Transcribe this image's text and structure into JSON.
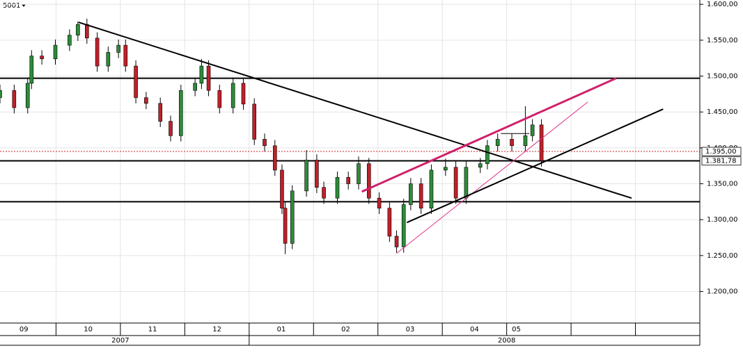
{
  "chart_data": {
    "type": "candlestick",
    "title": "5001",
    "xlim": [
      0.13,
      11.0
    ],
    "ylim": [
      1.156,
      1.606
    ],
    "yticks": [
      {
        "value": 1.2,
        "label": "1.200,00"
      },
      {
        "value": 1.25,
        "label": "1.250,00"
      },
      {
        "value": 1.3,
        "label": "1.300,00"
      },
      {
        "value": 1.35,
        "label": "1.350,00"
      },
      {
        "value": 1.4,
        "label": "1.400,00"
      },
      {
        "value": 1.45,
        "label": "1.450,00"
      },
      {
        "value": 1.5,
        "label": "1.500,00"
      },
      {
        "value": 1.55,
        "label": "1.550,00"
      },
      {
        "value": 1.6,
        "label": "1.600,00"
      }
    ],
    "xgrid": [
      1,
      2,
      3,
      4,
      5,
      6,
      7,
      8,
      9,
      10
    ],
    "xticks": [
      {
        "value": 0.5,
        "label": "09"
      },
      {
        "value": 1.5,
        "label": "10"
      },
      {
        "value": 2.5,
        "label": "11"
      },
      {
        "value": 3.5,
        "label": "12"
      },
      {
        "value": 4.5,
        "label": "01"
      },
      {
        "value": 5.5,
        "label": "02"
      },
      {
        "value": 6.5,
        "label": "03"
      },
      {
        "value": 7.5,
        "label": "04"
      },
      {
        "value": 8.15,
        "label": "05"
      }
    ],
    "years": [
      {
        "value": 2.0,
        "label": "2007"
      },
      {
        "value": 8.0,
        "label": "2008"
      }
    ],
    "year_separator": 4,
    "grid": true,
    "up_color": "#2e8b3a",
    "down_color": "#c0202a",
    "x": [
      0.13,
      0.35,
      0.56,
      0.62,
      0.78,
      0.99,
      1.21,
      1.34,
      1.48,
      1.64,
      1.81,
      1.97,
      2.08,
      2.24,
      2.4,
      2.62,
      2.78,
      2.94,
      3.16,
      3.26,
      3.37,
      3.54,
      3.75,
      3.91,
      4.08,
      4.24,
      4.4,
      4.51,
      4.56,
      4.67,
      4.89,
      5.05,
      5.16,
      5.37,
      5.54,
      5.7,
      5.86,
      6.02,
      6.18,
      6.29,
      6.4,
      6.51,
      6.67,
      6.83,
      7.05,
      7.21,
      7.37,
      7.59,
      7.7,
      7.86,
      8.08,
      8.29,
      8.4,
      8.54
    ],
    "open": [
      1.47,
      1.48,
      1.456,
      1.49,
      1.528,
      1.524,
      1.543,
      1.557,
      1.572,
      1.553,
      1.514,
      1.533,
      1.543,
      1.514,
      1.47,
      1.462,
      1.437,
      1.417,
      1.48,
      1.49,
      1.514,
      1.48,
      1.456,
      1.49,
      1.461,
      1.412,
      1.403,
      1.369,
      1.316,
      1.267,
      1.34,
      1.383,
      1.345,
      1.33,
      1.359,
      1.35,
      1.378,
      1.33,
      1.316,
      1.277,
      1.262,
      1.321,
      1.35,
      1.316,
      1.369,
      1.373,
      1.33,
      1.373,
      1.378,
      1.403,
      1.412,
      1.403,
      1.417,
      1.432
    ],
    "high": [
      1.488,
      1.488,
      1.498,
      1.536,
      1.536,
      1.551,
      1.565,
      1.576,
      1.58,
      1.561,
      1.541,
      1.551,
      1.551,
      1.522,
      1.478,
      1.47,
      1.445,
      1.488,
      1.498,
      1.524,
      1.522,
      1.488,
      1.498,
      1.498,
      1.469,
      1.42,
      1.411,
      1.377,
      1.324,
      1.348,
      1.397,
      1.391,
      1.353,
      1.367,
      1.367,
      1.388,
      1.386,
      1.338,
      1.324,
      1.285,
      1.329,
      1.358,
      1.358,
      1.377,
      1.385,
      1.381,
      1.381,
      1.386,
      1.411,
      1.42,
      1.42,
      1.458,
      1.44,
      1.44
    ],
    "low": [
      1.462,
      1.448,
      1.448,
      1.482,
      1.516,
      1.516,
      1.535,
      1.549,
      1.545,
      1.506,
      1.506,
      1.525,
      1.506,
      1.462,
      1.454,
      1.429,
      1.409,
      1.409,
      1.472,
      1.482,
      1.472,
      1.448,
      1.448,
      1.453,
      1.404,
      1.395,
      1.361,
      1.308,
      1.252,
      1.259,
      1.332,
      1.337,
      1.322,
      1.322,
      1.342,
      1.342,
      1.322,
      1.308,
      1.269,
      1.254,
      1.254,
      1.313,
      1.308,
      1.308,
      1.361,
      1.322,
      1.322,
      1.365,
      1.37,
      1.395,
      1.395,
      1.395,
      1.409,
      1.374
    ],
    "close": [
      1.48,
      1.456,
      1.49,
      1.528,
      1.524,
      1.543,
      1.557,
      1.572,
      1.553,
      1.514,
      1.533,
      1.543,
      1.514,
      1.47,
      1.462,
      1.437,
      1.417,
      1.48,
      1.49,
      1.514,
      1.48,
      1.456,
      1.49,
      1.461,
      1.412,
      1.403,
      1.369,
      1.316,
      1.267,
      1.34,
      1.383,
      1.345,
      1.33,
      1.359,
      1.35,
      1.378,
      1.33,
      1.316,
      1.277,
      1.262,
      1.321,
      1.35,
      1.316,
      1.369,
      1.373,
      1.33,
      1.373,
      1.378,
      1.403,
      1.412,
      1.403,
      1.417,
      1.432,
      1.382
    ],
    "hlines": [
      {
        "value": 1.497,
        "color": "#000000",
        "width": 2
      },
      {
        "value": 1.395,
        "color": "#d02020",
        "width": 1,
        "dashed": true
      },
      {
        "value": 1.382,
        "color": "#000000",
        "width": 2
      },
      {
        "value": 1.325,
        "color": "#000000",
        "width": 2
      }
    ],
    "trendlines": [
      {
        "points": [
          [
            1.35,
            1.575
          ],
          [
            9.94,
            1.33
          ]
        ],
        "color": "#000000",
        "width": 2
      },
      {
        "points": [
          [
            5.75,
            1.339
          ],
          [
            9.7,
            1.497
          ]
        ],
        "color": "#d0206a",
        "width": 3
      },
      {
        "points": [
          [
            6.29,
            1.253
          ],
          [
            9.26,
            1.464
          ]
        ],
        "color": "#e0308a",
        "width": 1
      },
      {
        "points": [
          [
            6.45,
            1.296
          ],
          [
            10.43,
            1.454
          ]
        ],
        "color": "#000000",
        "width": 2
      },
      {
        "points": [
          [
            7.91,
            1.42
          ],
          [
            8.35,
            1.42
          ]
        ],
        "color": "#000000",
        "width": 1
      }
    ],
    "price_labels": [
      {
        "value": 1.395,
        "label": "1.395,00",
        "color": "#000000"
      },
      {
        "value": 1.38178,
        "label": "1.381,78",
        "color": "#d01010"
      }
    ]
  }
}
